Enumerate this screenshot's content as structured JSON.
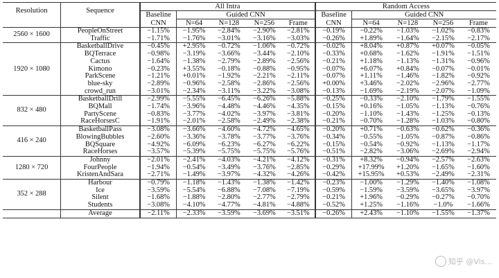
{
  "header": {
    "resolution": "Resolution",
    "sequence": "Sequence",
    "all_intra": "All Intra",
    "random_access": "Random Access",
    "baseline_l1": "Baseline",
    "baseline_l2": "CNN",
    "guided_cnn": "Guided CNN",
    "n64": "N=64",
    "n128": "N=128",
    "n256": "N=256",
    "frame": "Frame"
  },
  "groups": [
    {
      "resolution": "2560 × 1600",
      "rows": [
        [
          "PeopleOnStreet",
          "−1.15%",
          "−1.95%",
          "−2.84%",
          "−2.90%",
          "−2.81%",
          "−0.19%",
          "−0.22%",
          "−1.03%",
          "−1.02%",
          "−0.83%"
        ],
        [
          "Traffic",
          "−1.71%",
          "−1.76%",
          "−3.01%",
          "−3.16%",
          "−3.03%",
          "−0.26%",
          "+1.89%",
          "−1.64%",
          "−2.15%",
          "−2.17%"
        ]
      ]
    },
    {
      "resolution": "1920 × 1080",
      "rows": [
        [
          "BasketballDrive",
          "−0.45%",
          "+2.95%",
          "−0.72%",
          "−1.06%",
          "−0.72%",
          "−0.02%",
          "+8.04%",
          "+0.87%",
          "+0.07%",
          "−0.05%"
        ],
        [
          "BQTerrace",
          "−0.98%",
          "−3.19%",
          "−3.66%",
          "−3.44%",
          "−2.10%",
          "−0.33%",
          "+0.68%",
          "−1.62%",
          "−1.91%",
          "−1.51%"
        ],
        [
          "Cactus",
          "−1.64%",
          "−1.38%",
          "−2.79%",
          "−2.89%",
          "−2.56%",
          "−0.21%",
          "+1.18%",
          "−1.13%",
          "−1.31%",
          "−0.96%"
        ],
        [
          "Kimono",
          "−0.23%",
          "+3.55%",
          "−0.18%",
          "−0.88%",
          "−0.95%",
          "−0.07%",
          "+6.07%",
          "+0.84%",
          "−0.07%",
          "−0.01%"
        ],
        [
          "ParkScene",
          "−1.21%",
          "+0.01%",
          "−1.92%",
          "−2.21%",
          "−2.11%",
          "−0.07%",
          "+1.11%",
          "−1.46%",
          "−1.82%",
          "−0.92%"
        ],
        [
          "blue-sky",
          "−2.89%",
          "−0.96%",
          "−2.58%",
          "−2.86%",
          "−2.56%",
          "+0.00%",
          "+3.46%",
          "−2.02%",
          "−2.96%",
          "−2.77%"
        ],
        [
          "crowd_run",
          "−3.01%",
          "−2.34%",
          "−3.11%",
          "−3.22%",
          "−3.08%",
          "−0.13%",
          "−1.69%",
          "−2.19%",
          "−2.07%",
          "−1.09%"
        ]
      ]
    },
    {
      "resolution": "832 × 480",
      "rows": [
        [
          "BasketballDrill",
          "−2.99%",
          "−5.55%",
          "−6.45%",
          "−6.26%",
          "−5.88%",
          "−0.25%",
          "−0.33%",
          "−2.10%",
          "−1.79%",
          "−1.55%"
        ],
        [
          "BQMall",
          "−1.74%",
          "−3.96%",
          "−4.48%",
          "−4.46%",
          "−4.35%",
          "−0.15%",
          "+0.16%",
          "−1.05%",
          "−1.13%",
          "−0.76%"
        ],
        [
          "PartyScene",
          "−0.83%",
          "−3.77%",
          "−4.02%",
          "−3.97%",
          "−3.81%",
          "−0.20%",
          "−1.10%",
          "−1.43%",
          "−1.25%",
          "−0.13%"
        ],
        [
          "RaceHorsesC",
          "−1.91%",
          "−2.01%",
          "−2.58%",
          "−2.49%",
          "−2.38%",
          "−0.21%",
          "−0.70%",
          "−1.28%",
          "−1.03%",
          "−0.80%"
        ]
      ]
    },
    {
      "resolution": "416 × 240",
      "rows": [
        [
          "BasketballPass",
          "−3.08%",
          "−3.66%",
          "−4.60%",
          "−4.72%",
          "−4.65%",
          "−0.20%",
          "+0.71%",
          "−0.63%",
          "−0.62%",
          "−0.36%"
        ],
        [
          "BlowingBubbles",
          "−2.60%",
          "−3.36%",
          "−3.78%",
          "−3.77%",
          "−3.76%",
          "−0.34%",
          "−0.55%",
          "−1.05%",
          "−0.87%",
          "−0.86%"
        ],
        [
          "BQSquare",
          "−4.92%",
          "−6.09%",
          "−6.23%",
          "−6.27%",
          "−6.22%",
          "−0.15%",
          "−0.54%",
          "−0.92%",
          "−1.13%",
          "−1.17%"
        ],
        [
          "RaceHorses",
          "−3.57%",
          "−5.39%",
          "−5.75%",
          "−5.75%",
          "−5.76%",
          "−0.51%",
          "−2.82%",
          "−3.06%",
          "−2.69%",
          "−2.94%"
        ]
      ]
    },
    {
      "resolution": "1280 × 720",
      "rows": [
        [
          "Johnny",
          "−2.01%",
          "−2.41%",
          "−4.03%",
          "−4.21%",
          "−4.12%",
          "−0.31%",
          "+8.32%",
          "−0.94%",
          "−2.57%",
          "−2.63%"
        ],
        [
          "FourPeople",
          "−1.94%",
          "−0.54%",
          "−3.49%",
          "−3.76%",
          "−2.85%",
          "−0.29%",
          "+17.99%",
          "+1.20%",
          "−1.65%",
          "−1.60%"
        ],
        [
          "KristenAndSara",
          "−2.71%",
          "−1.49%",
          "−3.97%",
          "−4.32%",
          "−4.26%",
          "−0.42%",
          "+15.95%",
          "+0.53%",
          "−2.49%",
          "−2.31%"
        ]
      ]
    },
    {
      "resolution": "352 × 288",
      "rows": [
        [
          "Harbour",
          "−0.79%",
          "−1.18%",
          "−1.43%",
          "−1.38%",
          "−1.42%",
          "−0.23%",
          "−1.00%",
          "−1.29%",
          "−1.40%",
          "−1.08%"
        ],
        [
          "Ice",
          "−3.59%",
          "−5.54%",
          "−6.88%",
          "−7.08%",
          "−7.19%",
          "−0.59%",
          "−1.59%",
          "−3.59%",
          "−3.65%",
          "−3.97%"
        ],
        [
          "Silent",
          "−1.68%",
          "−1.88%",
          "−2.80%",
          "−2.77%",
          "−2.79%",
          "−0.21%",
          "+1.96%",
          "−0.29%",
          "−0.27%",
          "−0.70%"
        ],
        [
          "Students",
          "−3.08%",
          "−4.10%",
          "−4.77%",
          "−4.81%",
          "−4.88%",
          "−0.52%",
          "+1.25%",
          "−1.16%",
          "−1.0%",
          "−1.66%"
        ]
      ]
    }
  ],
  "average": [
    "Average",
    "−2.11%",
    "−2.33%",
    "−3.59%",
    "−3.69%",
    "−3.51%",
    "−0.26%",
    "+2.43%",
    "−1.10%",
    "−1.55%",
    "−1.37%"
  ],
  "watermark": "知乎 @Vis..."
}
